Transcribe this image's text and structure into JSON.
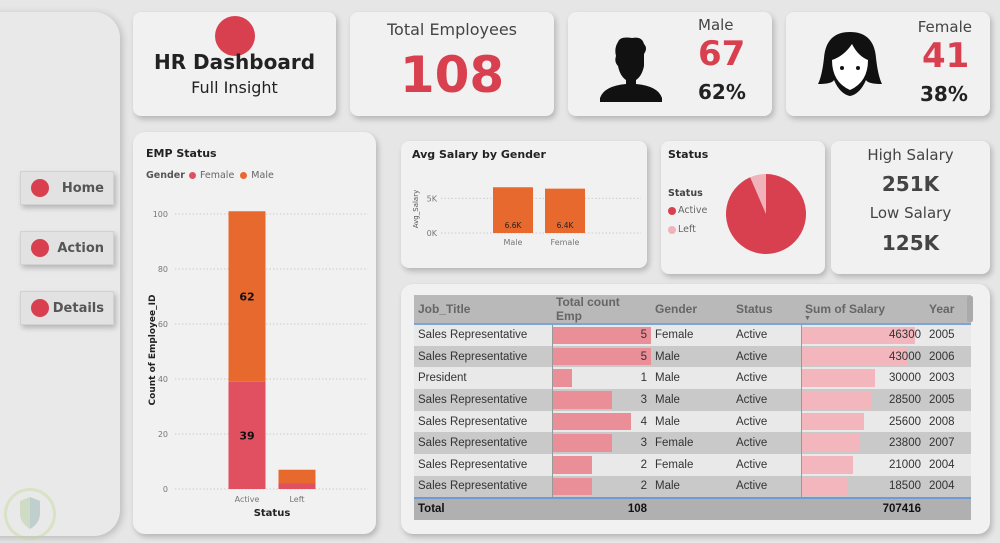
{
  "header": {
    "title": "HR Dashboard",
    "subtitle": "Full Insight"
  },
  "kpis": {
    "total_employees_label": "Total Employees",
    "total_employees": "108",
    "male_label": "Male",
    "male_count": "67",
    "male_pct": "62%",
    "female_label": "Female",
    "female_count": "41",
    "female_pct": "38%",
    "high_salary_label": "High Salary",
    "high_salary": "251K",
    "low_salary_label": "Low Salary",
    "low_salary": "125K"
  },
  "nav": {
    "items": [
      {
        "label": "Home"
      },
      {
        "label": "Action"
      },
      {
        "label": "Details"
      }
    ]
  },
  "colors": {
    "accent_red": "#d9404f",
    "female": "#e05060",
    "male": "#e8692e",
    "left_pink": "#f0b3ba",
    "table_count_bar": "#ea8f98",
    "table_salary_bar": "#f3b6bd"
  },
  "chart_data": [
    {
      "type": "bar",
      "stacked": true,
      "title": "EMP Status",
      "legend_title": "Gender",
      "legend": [
        "Female",
        "Male"
      ],
      "legend_position": "top-left",
      "categories": [
        "Active",
        "Left"
      ],
      "series": [
        {
          "name": "Female",
          "values": [
            39,
            2
          ]
        },
        {
          "name": "Male",
          "values": [
            62,
            5
          ]
        }
      ],
      "data_labels": [
        "62",
        "39"
      ],
      "xlabel": "Status",
      "ylabel": "Count of Employee_ID",
      "yticks": [
        "0",
        "20",
        "40",
        "60",
        "80",
        "100"
      ],
      "ylim": [
        0,
        105
      ]
    },
    {
      "type": "bar",
      "title": "Avg Salary by Gender",
      "categories": [
        "Male",
        "Female"
      ],
      "values": [
        6600,
        6400
      ],
      "data_labels": [
        "6.6K",
        "6.4K"
      ],
      "xlabel": "",
      "ylabel": "Avg_Salary",
      "yticks": [
        "0K",
        "5K"
      ],
      "ylim": [
        0,
        7500
      ]
    },
    {
      "type": "pie",
      "title": "Status",
      "legend_title": "Status",
      "legend_position": "left",
      "labels": [
        "Active",
        "Left"
      ],
      "values": [
        101,
        7
      ]
    }
  ],
  "table": {
    "columns": [
      "Job_Title",
      "Total count Emp",
      "Gender",
      "Status",
      "Sum of Salary",
      "Year"
    ],
    "sort_column": "Sum of Salary",
    "rows": [
      {
        "job": "Sales Representative",
        "count": "5",
        "gender": "Female",
        "status": "Active",
        "salary": "46300",
        "year": "2005"
      },
      {
        "job": "Sales Representative",
        "count": "5",
        "gender": "Male",
        "status": "Active",
        "salary": "43000",
        "year": "2006"
      },
      {
        "job": "President",
        "count": "1",
        "gender": "Male",
        "status": "Active",
        "salary": "30000",
        "year": "2003"
      },
      {
        "job": "Sales Representative",
        "count": "3",
        "gender": "Male",
        "status": "Active",
        "salary": "28500",
        "year": "2005"
      },
      {
        "job": "Sales Representative",
        "count": "4",
        "gender": "Male",
        "status": "Active",
        "salary": "25600",
        "year": "2008"
      },
      {
        "job": "Sales Representative",
        "count": "3",
        "gender": "Female",
        "status": "Active",
        "salary": "23800",
        "year": "2007"
      },
      {
        "job": "Sales Representative",
        "count": "2",
        "gender": "Female",
        "status": "Active",
        "salary": "21000",
        "year": "2004"
      },
      {
        "job": "Sales Representative",
        "count": "2",
        "gender": "Male",
        "status": "Active",
        "salary": "18500",
        "year": "2004"
      }
    ],
    "total": {
      "label": "Total",
      "count": "108",
      "salary": "707416"
    },
    "count_max": 5,
    "salary_max": 46300
  }
}
